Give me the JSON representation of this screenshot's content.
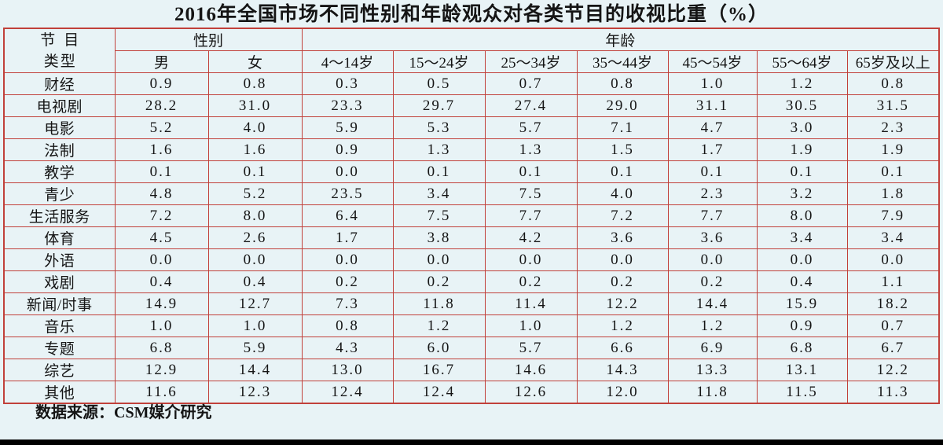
{
  "title": "2016年全国市场不同性别和年龄观众对各类节目的收视比重（%）",
  "table": {
    "corner": {
      "line1": "节目",
      "line2": "类型"
    },
    "groups": {
      "gender": "性别",
      "age": "年龄"
    },
    "columns": [
      "男",
      "女",
      "4～14岁",
      "15～24岁",
      "25～34岁",
      "35～44岁",
      "45～54岁",
      "55～64岁",
      "65岁及以上"
    ],
    "rows": [
      {
        "category": "财经",
        "values": [
          "0.9",
          "0.8",
          "0.3",
          "0.5",
          "0.7",
          "0.8",
          "1.0",
          "1.2",
          "0.8"
        ]
      },
      {
        "category": "电视剧",
        "values": [
          "28.2",
          "31.0",
          "23.3",
          "29.7",
          "27.4",
          "29.0",
          "31.1",
          "30.5",
          "31.5"
        ]
      },
      {
        "category": "电影",
        "values": [
          "5.2",
          "4.0",
          "5.9",
          "5.3",
          "5.7",
          "7.1",
          "4.7",
          "3.0",
          "2.3"
        ]
      },
      {
        "category": "法制",
        "values": [
          "1.6",
          "1.6",
          "0.9",
          "1.3",
          "1.3",
          "1.5",
          "1.7",
          "1.9",
          "1.9"
        ]
      },
      {
        "category": "教学",
        "values": [
          "0.1",
          "0.1",
          "0.0",
          "0.1",
          "0.1",
          "0.1",
          "0.1",
          "0.1",
          "0.1"
        ]
      },
      {
        "category": "青少",
        "values": [
          "4.8",
          "5.2",
          "23.5",
          "3.4",
          "7.5",
          "4.0",
          "2.3",
          "3.2",
          "1.8"
        ]
      },
      {
        "category": "生活服务",
        "values": [
          "7.2",
          "8.0",
          "6.4",
          "7.5",
          "7.7",
          "7.2",
          "7.7",
          "8.0",
          "7.9"
        ]
      },
      {
        "category": "体育",
        "values": [
          "4.5",
          "2.6",
          "1.7",
          "3.8",
          "4.2",
          "3.6",
          "3.6",
          "3.4",
          "3.4"
        ]
      },
      {
        "category": "外语",
        "values": [
          "0.0",
          "0.0",
          "0.0",
          "0.0",
          "0.0",
          "0.0",
          "0.0",
          "0.0",
          "0.0"
        ]
      },
      {
        "category": "戏剧",
        "values": [
          "0.4",
          "0.4",
          "0.2",
          "0.2",
          "0.2",
          "0.2",
          "0.2",
          "0.4",
          "1.1"
        ]
      },
      {
        "category": "新闻/时事",
        "values": [
          "14.9",
          "12.7",
          "7.3",
          "11.8",
          "11.4",
          "12.2",
          "14.4",
          "15.9",
          "18.2"
        ]
      },
      {
        "category": "音乐",
        "values": [
          "1.0",
          "1.0",
          "0.8",
          "1.2",
          "1.0",
          "1.2",
          "1.2",
          "0.9",
          "0.7"
        ]
      },
      {
        "category": "专题",
        "values": [
          "6.8",
          "5.9",
          "4.3",
          "6.0",
          "5.7",
          "6.6",
          "6.9",
          "6.8",
          "6.7"
        ]
      },
      {
        "category": "综艺",
        "values": [
          "12.9",
          "14.4",
          "13.0",
          "16.7",
          "14.6",
          "14.3",
          "13.3",
          "13.1",
          "12.2"
        ]
      },
      {
        "category": "其他",
        "values": [
          "11.6",
          "12.3",
          "12.4",
          "12.4",
          "12.6",
          "12.0",
          "11.8",
          "11.5",
          "11.3"
        ]
      }
    ]
  },
  "footer": {
    "source": "数据来源：CSM媒介研究"
  },
  "colors": {
    "background": "#e8f3f6",
    "grid_border": "#c1403a",
    "text": "#151515",
    "bottom_bar": "#000000"
  },
  "chart_data": {
    "type": "table",
    "title": "2016年全国市场不同性别和年龄观众对各类节目的收视比重（%）",
    "row_header": "节目类型",
    "column_groups": {
      "性别": [
        "男",
        "女"
      ],
      "年龄": [
        "4～14岁",
        "15～24岁",
        "25～34岁",
        "35～44岁",
        "45～54岁",
        "55～64岁",
        "65岁及以上"
      ]
    },
    "columns": [
      "男",
      "女",
      "4～14岁",
      "15～24岁",
      "25～34岁",
      "35～44岁",
      "45～54岁",
      "55～64岁",
      "65岁及以上"
    ],
    "categories": [
      "财经",
      "电视剧",
      "电影",
      "法制",
      "教学",
      "青少",
      "生活服务",
      "体育",
      "外语",
      "戏剧",
      "新闻/时事",
      "音乐",
      "专题",
      "综艺",
      "其他"
    ],
    "series": [
      {
        "name": "男",
        "values": [
          0.9,
          28.2,
          5.2,
          1.6,
          0.1,
          4.8,
          7.2,
          4.5,
          0.0,
          0.4,
          14.9,
          1.0,
          6.8,
          12.9,
          11.6
        ]
      },
      {
        "name": "女",
        "values": [
          0.8,
          31.0,
          4.0,
          1.6,
          0.1,
          5.2,
          8.0,
          2.6,
          0.0,
          0.4,
          12.7,
          1.0,
          5.9,
          14.4,
          12.3
        ]
      },
      {
        "name": "4～14岁",
        "values": [
          0.3,
          23.3,
          5.9,
          0.9,
          0.0,
          23.5,
          6.4,
          1.7,
          0.0,
          0.2,
          7.3,
          0.8,
          4.3,
          13.0,
          12.4
        ]
      },
      {
        "name": "15～24岁",
        "values": [
          0.5,
          29.7,
          5.3,
          1.3,
          0.1,
          3.4,
          7.5,
          3.8,
          0.0,
          0.2,
          11.8,
          1.2,
          6.0,
          16.7,
          12.4
        ]
      },
      {
        "name": "25～34岁",
        "values": [
          0.7,
          27.4,
          5.7,
          1.3,
          0.1,
          7.5,
          7.7,
          4.2,
          0.0,
          0.2,
          11.4,
          1.0,
          5.7,
          14.6,
          12.6
        ]
      },
      {
        "name": "35～44岁",
        "values": [
          0.8,
          29.0,
          7.1,
          1.5,
          0.1,
          4.0,
          7.2,
          3.6,
          0.0,
          0.2,
          12.2,
          1.2,
          6.6,
          14.3,
          12.0
        ]
      },
      {
        "name": "45～54岁",
        "values": [
          1.0,
          31.1,
          4.7,
          1.7,
          0.1,
          2.3,
          7.7,
          3.6,
          0.0,
          0.2,
          14.4,
          1.2,
          6.9,
          13.3,
          11.8
        ]
      },
      {
        "name": "55～64岁",
        "values": [
          1.2,
          30.5,
          3.0,
          1.9,
          0.1,
          3.2,
          8.0,
          3.4,
          0.0,
          0.4,
          15.9,
          0.9,
          6.8,
          13.1,
          11.5
        ]
      },
      {
        "name": "65岁及以上",
        "values": [
          0.8,
          31.5,
          2.3,
          1.9,
          0.1,
          1.8,
          7.9,
          3.4,
          0.0,
          1.1,
          18.2,
          0.7,
          6.7,
          12.2,
          11.3
        ]
      }
    ],
    "source": "数据来源：CSM媒介研究",
    "unit": "%"
  }
}
